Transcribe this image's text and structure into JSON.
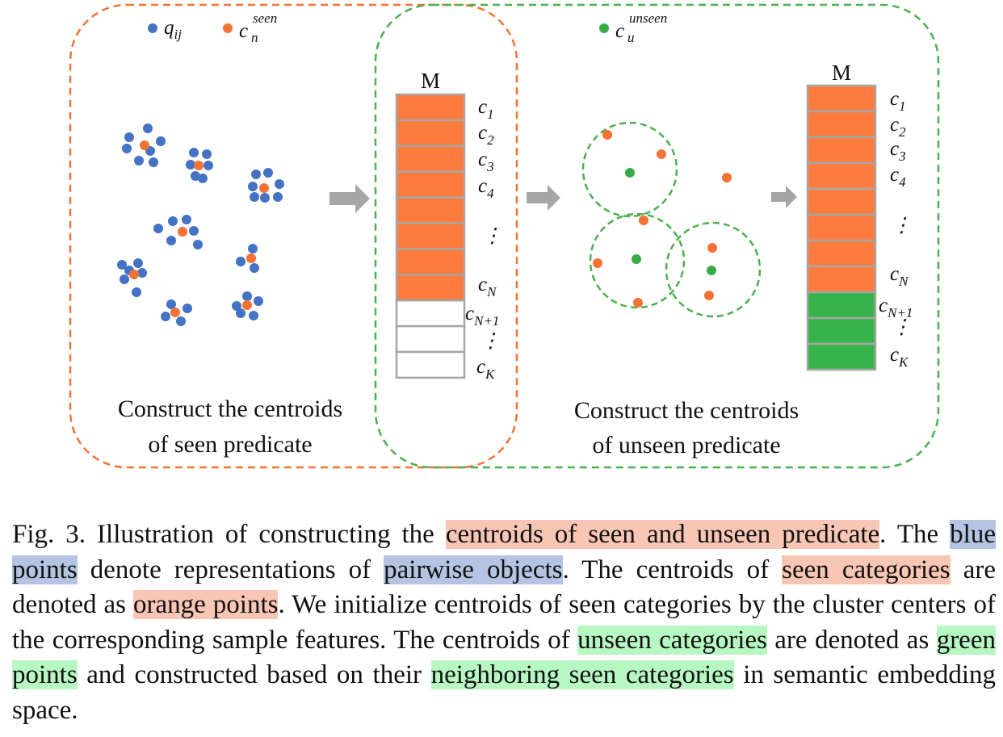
{
  "legend": {
    "q_symbol": "q",
    "q_subscript": "ij",
    "seen_symbol": "c",
    "seen_subscript": "n",
    "seen_superscript": "seen",
    "unseen_symbol": "c",
    "unseen_subscript": "u",
    "unseen_superscript": "unseen"
  },
  "matrix_left": {
    "title": "M",
    "labels": [
      {
        "sym": "c",
        "sub": "1"
      },
      {
        "sym": "c",
        "sub": "2"
      },
      {
        "sym": "c",
        "sub": "3"
      },
      {
        "sym": "c",
        "sub": "4"
      },
      {
        "sym": "⋮",
        "sub": ""
      },
      {
        "sym": "c",
        "sub": "N"
      },
      {
        "sym": "c",
        "sub": "N+1"
      },
      {
        "sym": "⋮",
        "sub": ""
      },
      {
        "sym": "c",
        "sub": "K"
      }
    ],
    "rows": [
      "seen",
      "seen",
      "seen",
      "seen",
      "seen",
      "seen",
      "seen",
      "seen",
      "empty",
      "empty",
      "empty"
    ]
  },
  "matrix_right": {
    "title": "M",
    "labels": [
      {
        "sym": "c",
        "sub": "1"
      },
      {
        "sym": "c",
        "sub": "2"
      },
      {
        "sym": "c",
        "sub": "3"
      },
      {
        "sym": "c",
        "sub": "4"
      },
      {
        "sym": "⋮",
        "sub": ""
      },
      {
        "sym": "c",
        "sub": "N"
      },
      {
        "sym": "c",
        "sub": "N+1"
      },
      {
        "sym": "⋮",
        "sub": ""
      },
      {
        "sym": "c",
        "sub": "K"
      }
    ],
    "rows": [
      "seen",
      "seen",
      "seen",
      "seen",
      "seen",
      "seen",
      "seen",
      "seen",
      "unseen",
      "unseen",
      "unseen"
    ]
  },
  "captions": {
    "left_line1": "Construct the centroids",
    "left_line2": "of seen predicate",
    "right_line1": "Construct the centroids",
    "right_line2": "of unseen predicate"
  },
  "colors": {
    "blue_point": "#4472c4",
    "orange_point": "#f47234",
    "green_point": "#3aaa48",
    "seen_cell": "#fe7b3e",
    "unseen_cell": "#36b34a",
    "cell_border": "#a6a6a6",
    "arrow": "#a6a6a6",
    "orange_border": "#f47234",
    "green_border": "#4caf50"
  },
  "figure_caption": {
    "prefix": "Fig. 3.  Illustration of constructing the ",
    "h1": "centroids of seen and unseen predicate",
    "t1": ". The ",
    "h2": "blue points",
    "t2": " denote representations of ",
    "h3": "pairwise objects",
    "t3": ". The centroids of ",
    "h4": "seen categories",
    "t4": " are denoted as ",
    "h5": "orange points",
    "t5": ". We initialize centroids of seen categories by the cluster centers of the corresponding sample features. The centroids of ",
    "h6": "unseen categories",
    "t6": " are denoted as ",
    "h7": "green points",
    "t7": " and constructed based on their ",
    "h8": "neighboring seen categories",
    "t8": " in semantic embedding space."
  }
}
